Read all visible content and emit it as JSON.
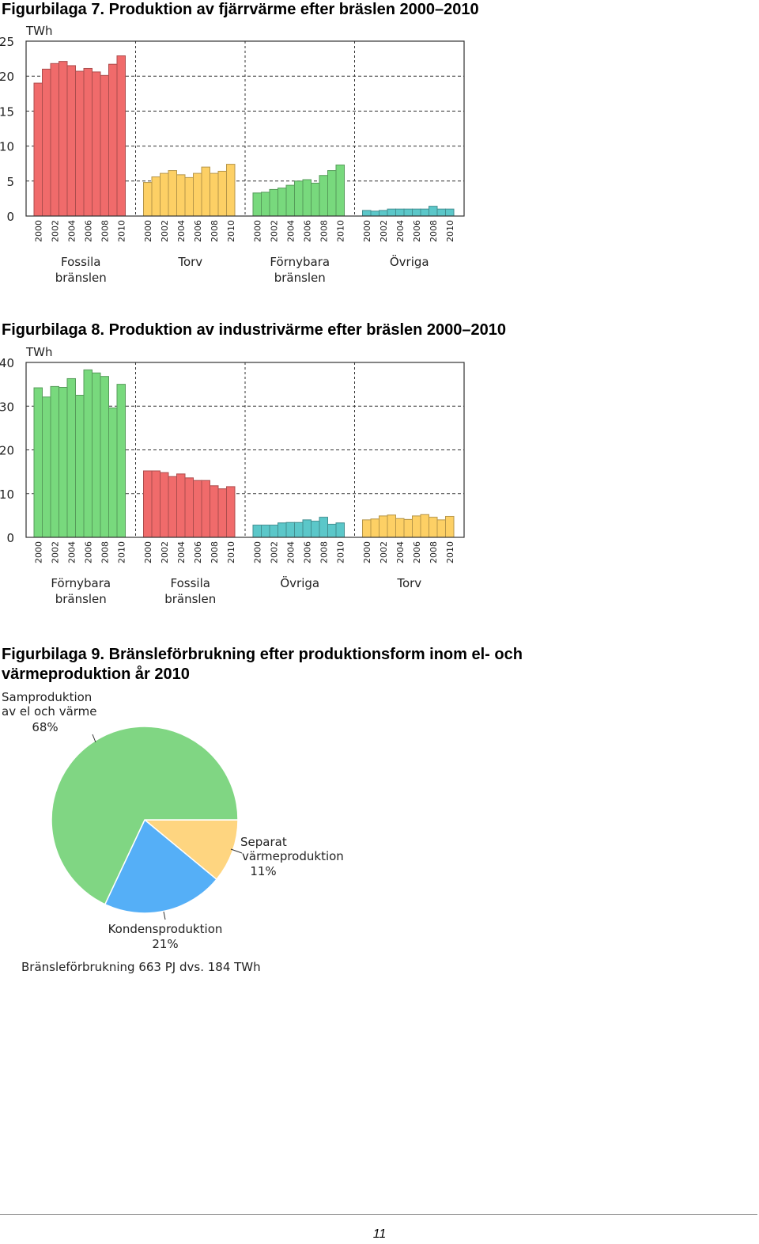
{
  "titles": {
    "fig7": "Figurbilaga 7. Produktion av fjärrvärme efter bräslen 2000–2010",
    "fig8": "Figurbilaga 8. Produktion av industrivärme efter bräslen 2000–2010",
    "fig9": "Figurbilaga 9. Bränsleförbrukning efter produktionsform inom el- och värmeproduktion år 2010"
  },
  "page_number": "11",
  "chart_data": [
    {
      "type": "bar",
      "unit_label": "TWh",
      "ylim": [
        0,
        25
      ],
      "yticks": [
        0,
        5,
        10,
        15,
        20,
        25
      ],
      "grid": true,
      "x_tick_labels": [
        "2000",
        "2002",
        "2004",
        "2006",
        "2008",
        "2010"
      ],
      "groups": [
        {
          "name": "Fossila bränslen",
          "color": "#f06b6b",
          "values": [
            19,
            21,
            21.8,
            22.1,
            21.5,
            20.7,
            21.1,
            20.6,
            20.1,
            21.7,
            22.9
          ]
        },
        {
          "name": "Torv",
          "color": "#fdd065",
          "values": [
            4.8,
            5.6,
            6.1,
            6.5,
            5.9,
            5.5,
            6.1,
            7,
            6.1,
            6.4,
            7.4
          ]
        },
        {
          "name": "Förnybara bränslen",
          "color": "#78d97d",
          "values": [
            3.3,
            3.4,
            3.8,
            4,
            4.4,
            5,
            5.2,
            4.7,
            5.8,
            6.5,
            7.3
          ]
        },
        {
          "name": "Övriga",
          "color": "#5bc7c9",
          "values": [
            0.8,
            0.7,
            0.8,
            1,
            1,
            1,
            1,
            1,
            1.4,
            1,
            1
          ]
        }
      ]
    },
    {
      "type": "bar",
      "unit_label": "TWh",
      "ylim": [
        0,
        40
      ],
      "yticks": [
        0,
        10,
        20,
        30,
        40
      ],
      "grid": true,
      "x_tick_labels": [
        "2000",
        "2002",
        "2004",
        "2006",
        "2008",
        "2010"
      ],
      "groups": [
        {
          "name": "Förnybara bränslen",
          "color": "#78d97d",
          "values": [
            34.2,
            32.1,
            34.5,
            34.3,
            36.3,
            32.5,
            38.3,
            37.6,
            36.8,
            29.6,
            35
          ]
        },
        {
          "name": "Fossila bränslen",
          "color": "#f06b6b",
          "values": [
            15.2,
            15.2,
            14.8,
            13.9,
            14.5,
            13.6,
            13,
            13,
            11.8,
            11.1,
            11.6
          ]
        },
        {
          "name": "Övriga",
          "color": "#5bc7c9",
          "values": [
            2.8,
            2.8,
            2.8,
            3.3,
            3.4,
            3.4,
            4,
            3.7,
            4.6,
            3,
            3.3
          ]
        },
        {
          "name": "Torv",
          "color": "#fdd065",
          "values": [
            4,
            4.2,
            4.9,
            5.1,
            4.3,
            4.1,
            4.9,
            5.2,
            4.6,
            4,
            4.8
          ]
        }
      ]
    },
    {
      "type": "pie",
      "slices": [
        {
          "label": "Samproduktion av el och värme",
          "label_lines": [
            "Samproduktion",
            "av el och värme"
          ],
          "value": 68,
          "value_text": "68%",
          "color": "#80d683"
        },
        {
          "label": "Separat värmeproduktion",
          "label_lines": [
            "Separat",
            "värmeproduktion"
          ],
          "value": 11,
          "value_text": "11%",
          "color": "#fed580"
        },
        {
          "label": "Kondensproduktion",
          "label_lines": [
            "Kondensproduktion"
          ],
          "value": 21,
          "value_text": "21%",
          "color": "#55aff7"
        }
      ],
      "note": "Bränsleförbrukning 663 PJ dvs. 184 TWh"
    }
  ]
}
